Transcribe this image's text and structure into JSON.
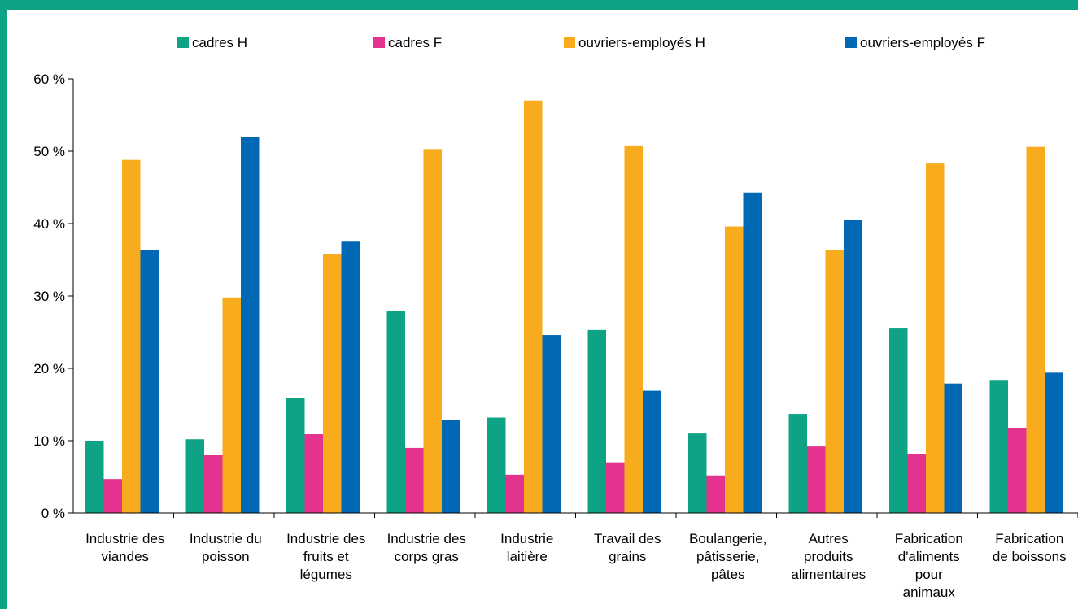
{
  "chart_data": {
    "type": "bar",
    "categories": [
      [
        "Industrie des",
        "viandes"
      ],
      [
        "Industrie du",
        "poisson"
      ],
      [
        "Industrie des",
        "fruits et",
        "légumes"
      ],
      [
        "Industrie des",
        "corps gras"
      ],
      [
        "Industrie",
        "laitière"
      ],
      [
        "Travail des",
        "grains"
      ],
      [
        "Boulangerie,",
        "pâtisserie,",
        "pâtes"
      ],
      [
        "Autres",
        "produits",
        "alimentaires"
      ],
      [
        "Fabrication",
        "d'aliments",
        "pour",
        "animaux"
      ],
      [
        "Fabrication",
        "de boissons"
      ]
    ],
    "series": [
      {
        "name": "cadres H",
        "color": "#0fa386",
        "values": [
          10.0,
          10.2,
          15.9,
          27.9,
          13.2,
          25.3,
          11.0,
          13.7,
          25.5,
          18.4
        ]
      },
      {
        "name": "cadres F",
        "color": "#e4338f",
        "values": [
          4.7,
          8.0,
          10.9,
          9.0,
          5.3,
          7.0,
          5.2,
          9.2,
          8.2,
          11.7
        ]
      },
      {
        "name": "ouvriers-employés H",
        "color": "#f9ab1e",
        "values": [
          48.8,
          29.8,
          35.8,
          50.3,
          57.0,
          50.8,
          39.6,
          36.3,
          48.3,
          50.6
        ]
      },
      {
        "name": "ouvriers-employés F",
        "color": "#0068b4",
        "values": [
          36.3,
          52.0,
          37.5,
          12.9,
          24.6,
          16.9,
          44.3,
          40.5,
          17.9,
          19.4
        ]
      }
    ],
    "y_ticks": [
      "0 %",
      "10 %",
      "20 %",
      "30 %",
      "40 %",
      "50 %",
      "60 %"
    ],
    "ylim": [
      0,
      60
    ],
    "title": "",
    "xlabel": "",
    "ylabel": "",
    "grid": false,
    "legend_position": "top"
  }
}
